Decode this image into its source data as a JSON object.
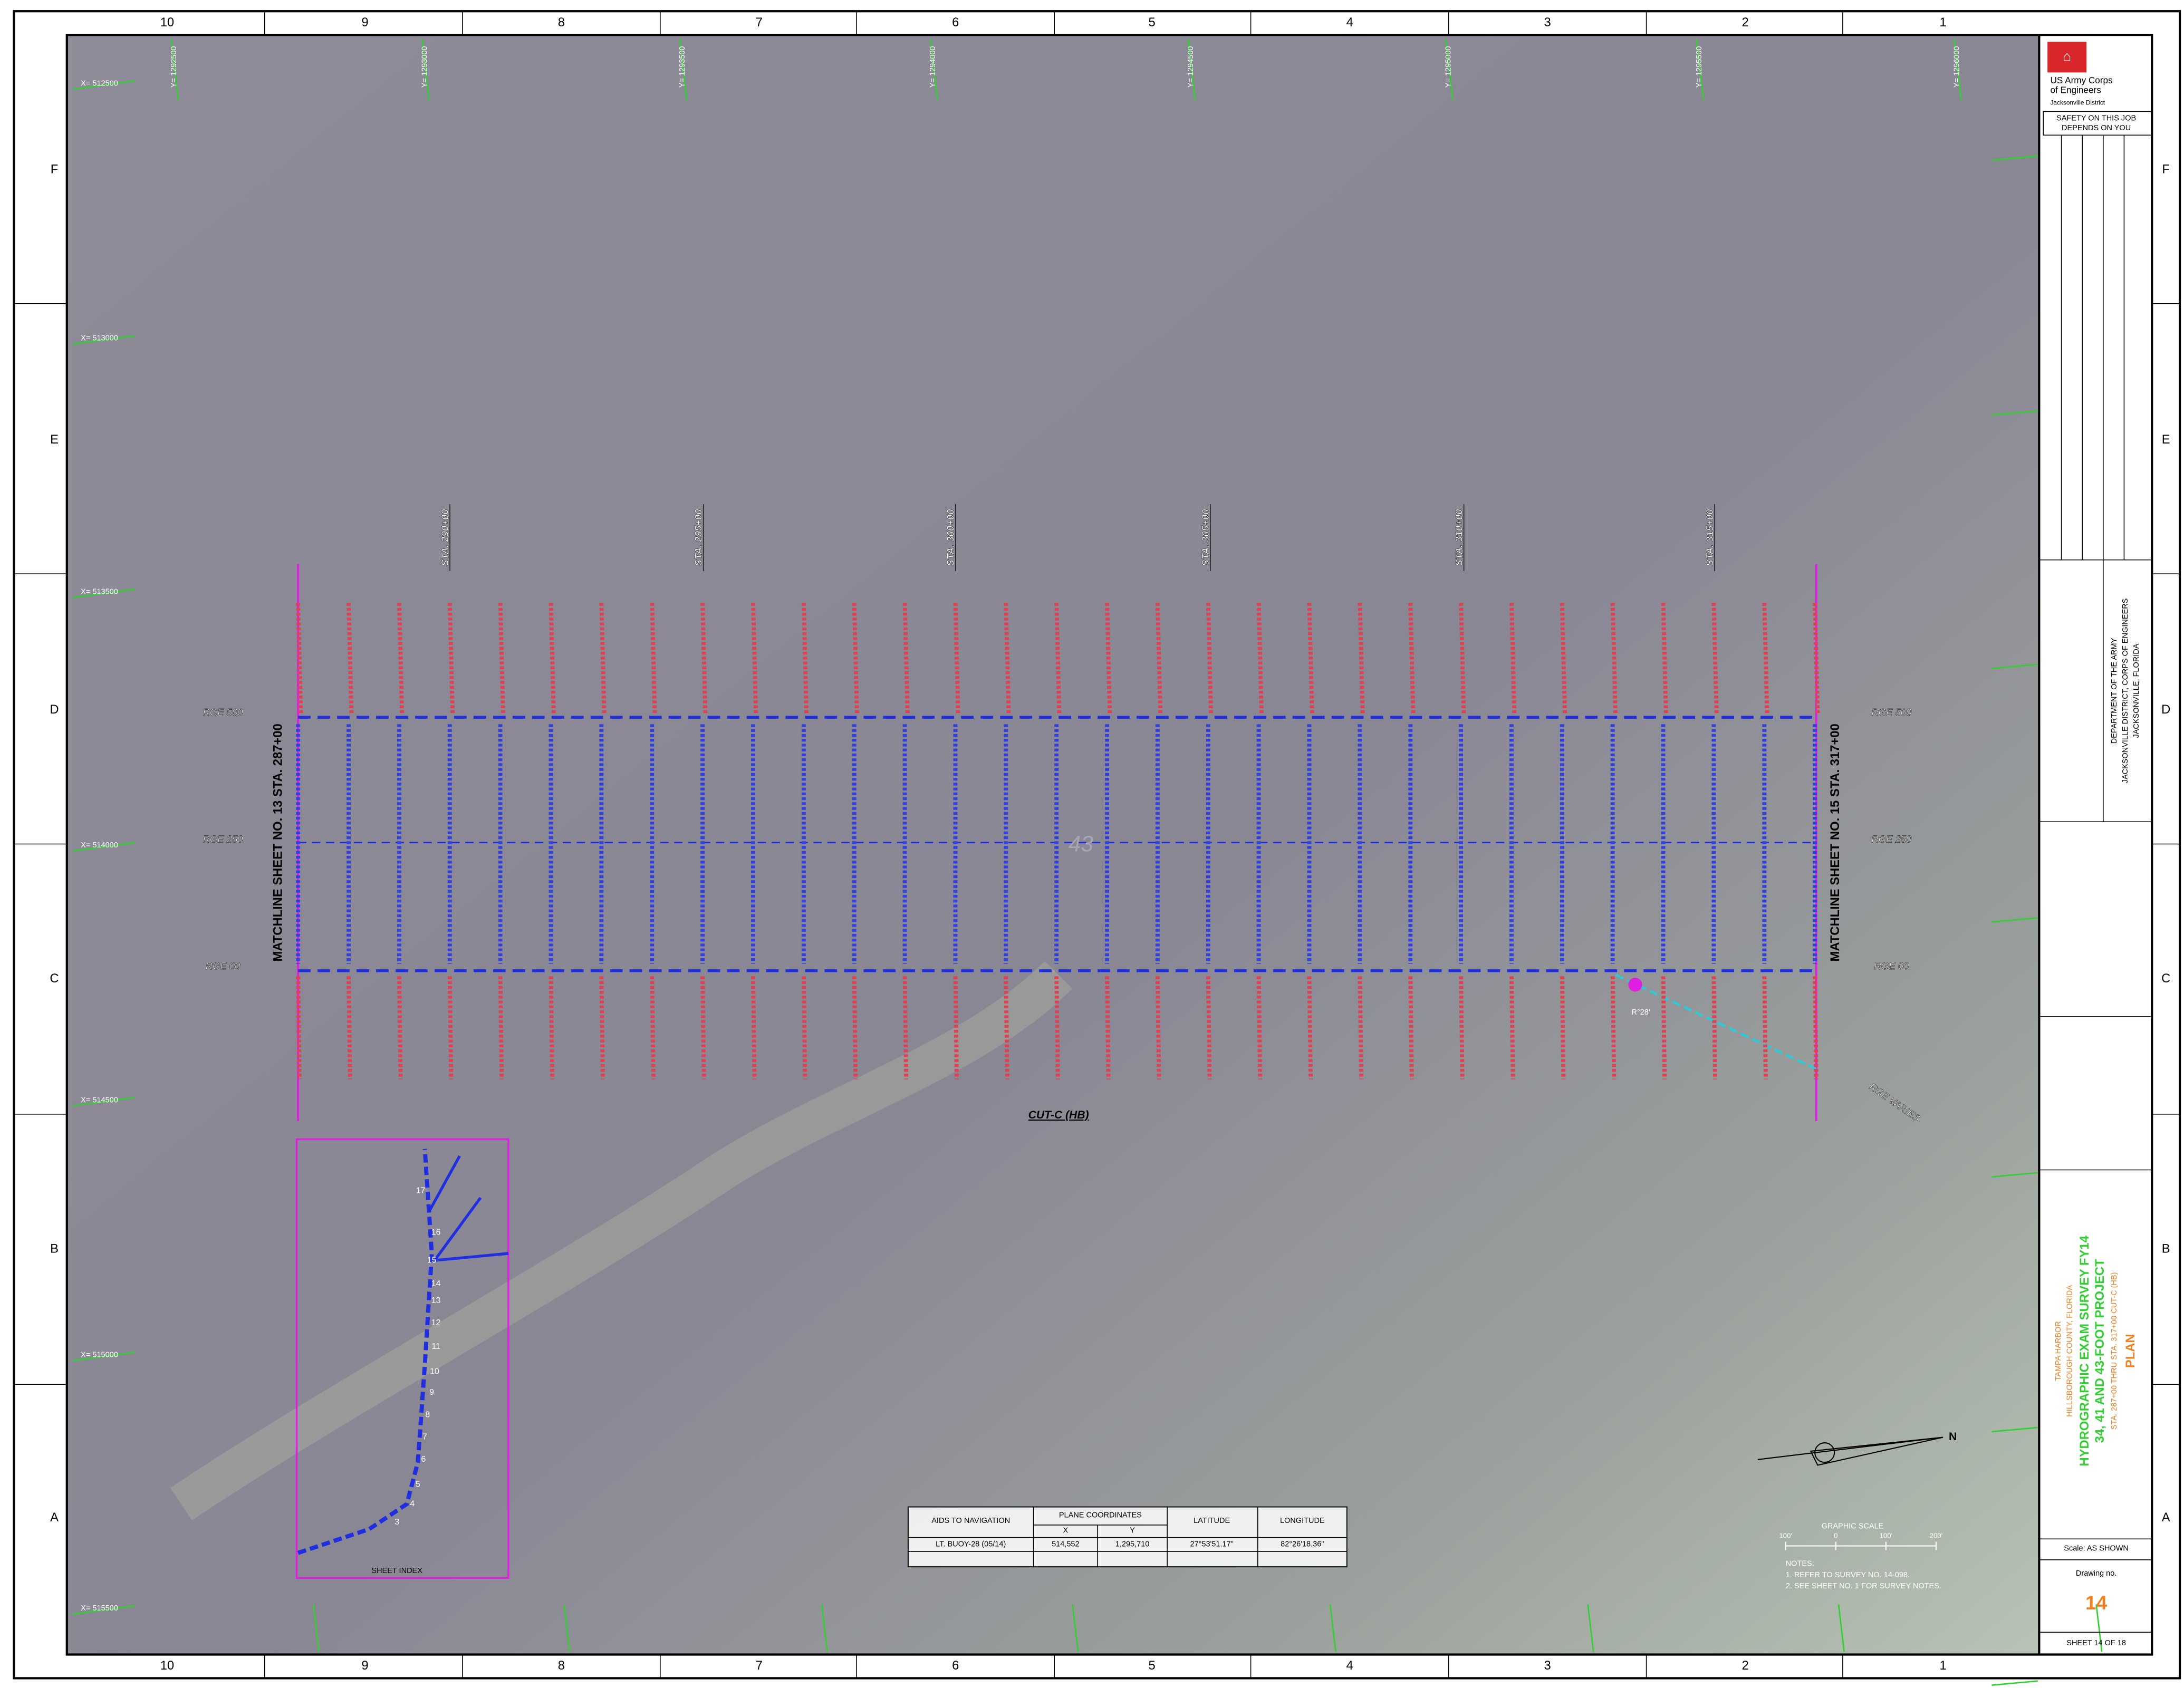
{
  "border": {
    "columns": [
      "10",
      "9",
      "8",
      "7",
      "6",
      "5",
      "4",
      "3",
      "2",
      "1"
    ],
    "rows": [
      "F",
      "E",
      "D",
      "C",
      "B",
      "A"
    ]
  },
  "map": {
    "easting_labels": [
      "X= 512500",
      "X= 513000",
      "X= 513500",
      "X= 514000",
      "X= 514500",
      "X= 515000",
      "X= 515500"
    ],
    "northing_labels": [
      "Y= 1292500",
      "Y= 1293000",
      "Y= 1293500",
      "Y= 1294000",
      "Y= 1294500",
      "Y= 1295000",
      "Y= 1295500",
      "Y= 1296000"
    ],
    "stations": [
      "STA. 290+00",
      "STA. 295+00",
      "STA. 300+00",
      "STA. 305+00",
      "STA. 310+00",
      "STA. 315+00"
    ],
    "range_lines": [
      "RGE 500",
      "RGE 250",
      "RGE 00"
    ],
    "matchline_left": "MATCHLINE SHEET NO. 13 STA. 287+00",
    "matchline_right": "MATCHLINE SHEET NO. 15 STA. 317+00",
    "depth_label": "43",
    "channel_label": "CUT-C (HB)",
    "rge_varies": "RGE VARIES",
    "angle_label": "R°28'",
    "north": "N"
  },
  "sheet_index": {
    "title": "SHEET INDEX",
    "numbers": [
      "17",
      "16",
      "15",
      "14",
      "13",
      "12",
      "11",
      "10",
      "9",
      "8",
      "7",
      "6",
      "5",
      "4",
      "3"
    ]
  },
  "aids_table": {
    "headers": [
      "AIDS TO NAVIGATION",
      "PLANE COORDINATES",
      "LATITUDE",
      "LONGITUDE"
    ],
    "subheaders": [
      "X",
      "Y"
    ],
    "rows": [
      [
        "LT. BUOY-28 (05/14)",
        "514,552",
        "1,295,710",
        "27°53'51.17\"",
        "82°26'18.36\""
      ]
    ]
  },
  "notes": {
    "title": "NOTES:",
    "items": [
      "1. REFER TO SURVEY NO. 14-098.",
      "2. SEE SHEET NO. 1 FOR SURVEY NOTES."
    ]
  },
  "graphic_scale": {
    "title": "GRAPHIC SCALE",
    "labels": [
      "100'",
      "0",
      "100'",
      "200'"
    ]
  },
  "title_block": {
    "agency": [
      "US Army Corps",
      "of Engineers",
      "Jacksonville District"
    ],
    "safety": [
      "SAFETY ON THIS JOB",
      "DEPENDS ON YOU"
    ],
    "department": [
      "DEPARTMENT OF THE ARMY",
      "JACKSONVILLE DISTRICT, CORPS OF ENGINEERS",
      "JACKSONVILLE, FLORIDA"
    ],
    "project": [
      "TAMPA HARBOR",
      "HILLSBOROUGH COUNTY, FLORIDA",
      "HYDROGRAPHIC EXAM SURVEY FY14",
      "34, 41 AND 43-FOOT PROJECT",
      "STA. 287+00 THRU STA. 317+00 CUT-C (HB)",
      "PLAN"
    ],
    "scale": "Scale: AS SHOWN",
    "drawing_no_label": "Drawing no.",
    "drawing_no": "14",
    "sheet": "SHEET 14 OF 18"
  }
}
